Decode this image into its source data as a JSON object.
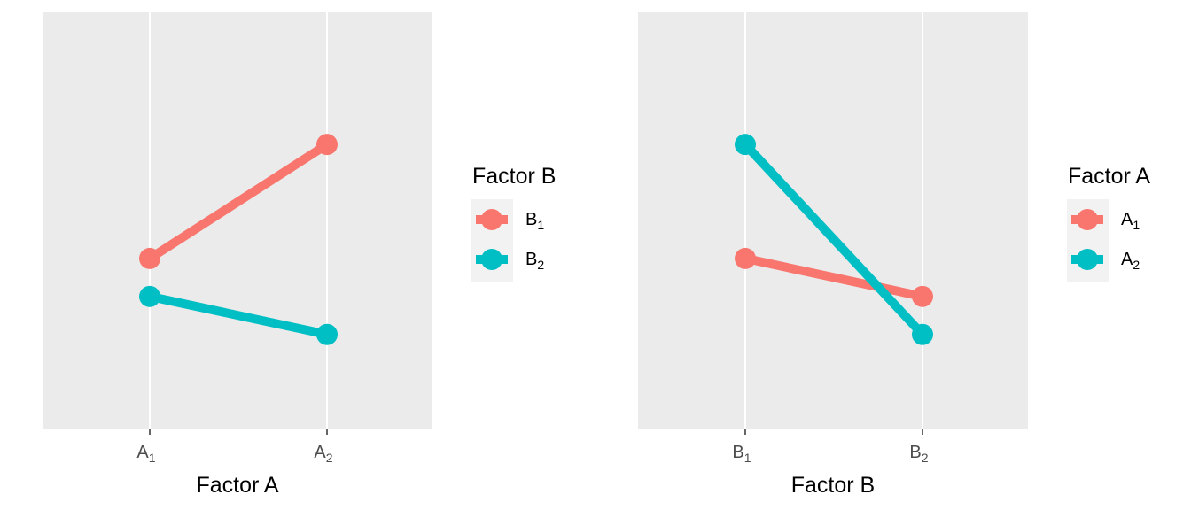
{
  "chart_data": [
    {
      "type": "line",
      "xlabel": "Factor A",
      "categories": [
        {
          "base": "A",
          "sub": "1"
        },
        {
          "base": "A",
          "sub": "2"
        }
      ],
      "ylim": [
        0,
        11
      ],
      "legend_title": "Factor B",
      "legend_position": "right",
      "grid": "vertical major lines only",
      "series": [
        {
          "name_base": "B",
          "name_sub": "1",
          "color": "#F8766D",
          "values": [
            4.5,
            7.5
          ]
        },
        {
          "name_base": "B",
          "name_sub": "2",
          "color": "#00BFC4",
          "values": [
            3.5,
            2.5
          ]
        }
      ]
    },
    {
      "type": "line",
      "xlabel": "Factor B",
      "categories": [
        {
          "base": "B",
          "sub": "1"
        },
        {
          "base": "B",
          "sub": "2"
        }
      ],
      "ylim": [
        0,
        11
      ],
      "legend_title": "Factor A",
      "legend_position": "right",
      "grid": "vertical major lines only",
      "series": [
        {
          "name_base": "A",
          "name_sub": "1",
          "color": "#F8766D",
          "values": [
            4.5,
            3.5
          ]
        },
        {
          "name_base": "A",
          "name_sub": "2",
          "color": "#00BFC4",
          "values": [
            7.5,
            2.5
          ]
        }
      ]
    }
  ]
}
